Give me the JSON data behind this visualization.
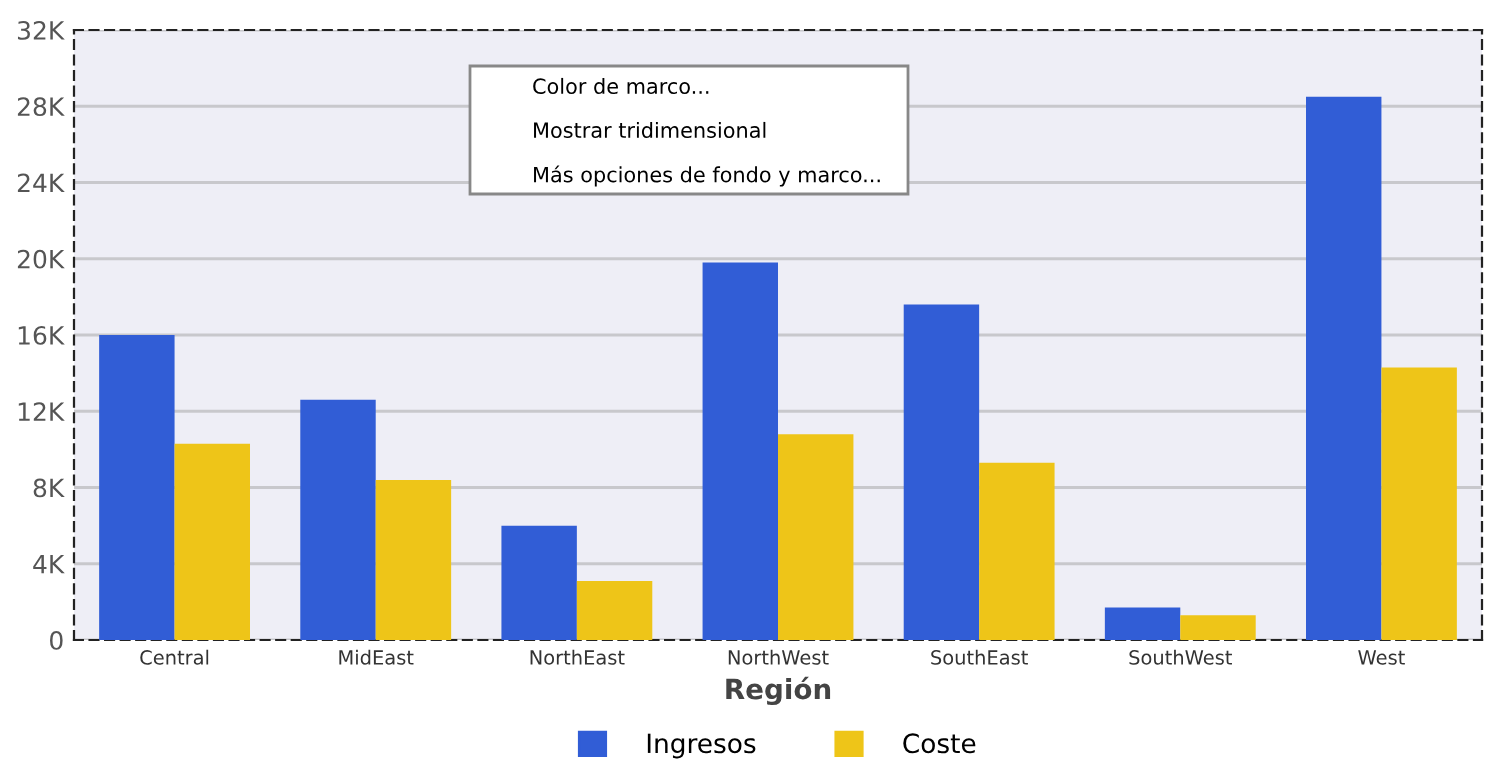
{
  "chart_data": {
    "type": "bar",
    "xlabel": "Región",
    "categories": [
      "Central",
      "MidEast",
      "NorthEast",
      "NorthWest",
      "SouthEast",
      "SouthWest",
      "West"
    ],
    "series": [
      {
        "name": "Ingresos",
        "color": "#315dd6",
        "values": [
          16000,
          12600,
          6000,
          19800,
          17600,
          1700,
          28500
        ]
      },
      {
        "name": "Coste",
        "color": "#eec518",
        "values": [
          10300,
          8400,
          3100,
          10800,
          9300,
          1300,
          14300
        ]
      }
    ],
    "ylim": [
      0,
      32000
    ],
    "yticks": [
      {
        "value": 0,
        "label": "0"
      },
      {
        "value": 4000,
        "label": "4K"
      },
      {
        "value": 8000,
        "label": "8K"
      },
      {
        "value": 12000,
        "label": "12K"
      },
      {
        "value": 16000,
        "label": "16K"
      },
      {
        "value": 20000,
        "label": "20K"
      },
      {
        "value": 24000,
        "label": "24K"
      },
      {
        "value": 28000,
        "label": "28K"
      },
      {
        "value": 32000,
        "label": "32K"
      }
    ],
    "grid": "y",
    "legend": "bottom",
    "annotations": [
      "Color de marco...",
      "Mostrar tridimensional",
      "Más opciones de fondo y marco..."
    ]
  }
}
